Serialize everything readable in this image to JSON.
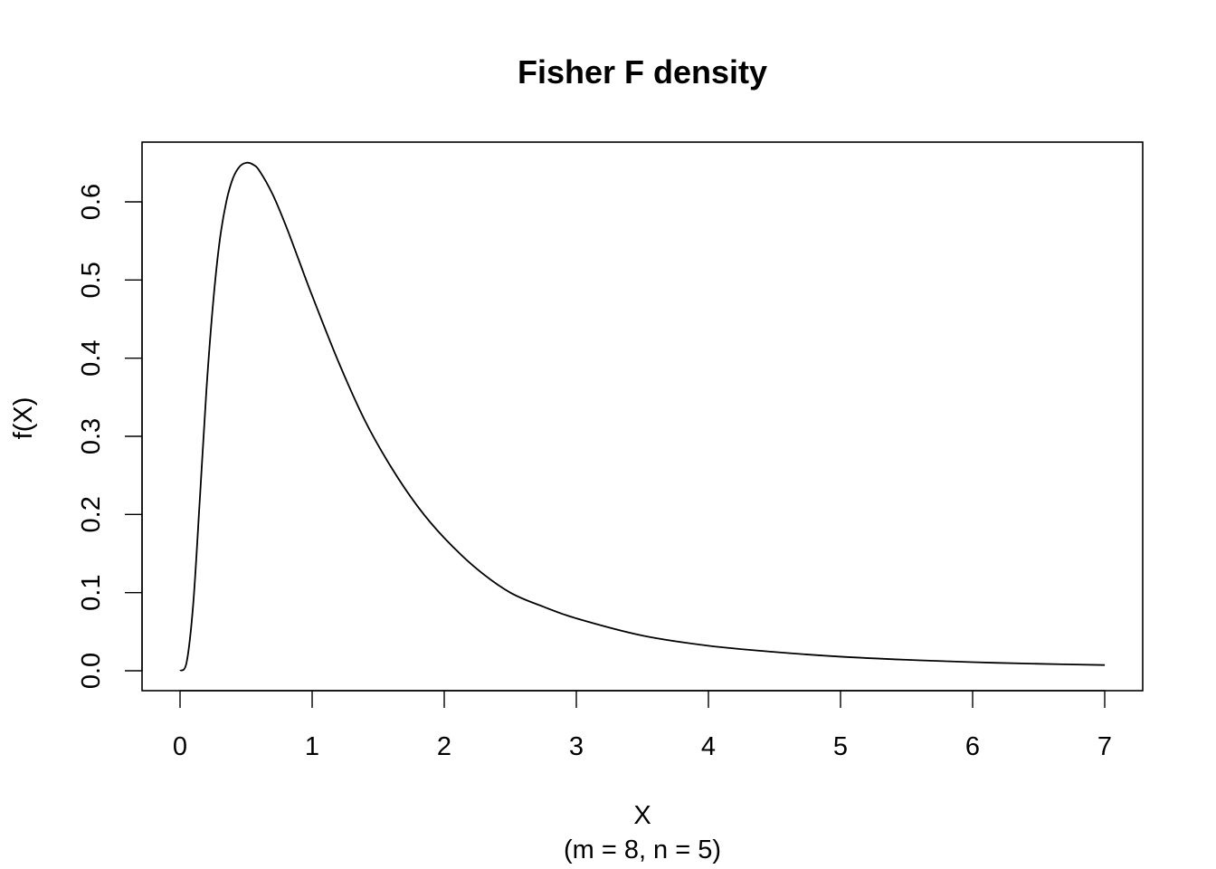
{
  "chart_data": {
    "type": "line",
    "title": "Fisher F density",
    "xlabel": "X",
    "subtitle": "(m = 8, n = 5)",
    "ylabel": "f(X)",
    "xlim": [
      0,
      7
    ],
    "ylim": [
      0,
      0.65
    ],
    "grid": false,
    "x_ticks": [
      0,
      1,
      2,
      3,
      4,
      5,
      6,
      7
    ],
    "x_tick_labels": [
      "0",
      "1",
      "2",
      "3",
      "4",
      "5",
      "6",
      "7"
    ],
    "y_ticks": [
      0.0,
      0.1,
      0.2,
      0.3,
      0.4,
      0.5,
      0.6
    ],
    "y_tick_labels": [
      "0.0",
      "0.1",
      "0.2",
      "0.3",
      "0.4",
      "0.5",
      "0.6"
    ],
    "series": [
      {
        "x": [
          0,
          0.05,
          0.1,
          0.15,
          0.2,
          0.25,
          0.3,
          0.35,
          0.4,
          0.45,
          0.5,
          0.55,
          0.6,
          0.7,
          0.8,
          0.9,
          1.0,
          1.2,
          1.4,
          1.6,
          1.8,
          2.0,
          2.25,
          2.5,
          2.75,
          3.0,
          3.5,
          4.0,
          4.5,
          5.0,
          5.5,
          6.0,
          6.5,
          7.0
        ],
        "values": [
          0,
          0.011,
          0.086,
          0.22,
          0.36,
          0.47,
          0.55,
          0.6,
          0.63,
          0.645,
          0.65,
          0.648,
          0.64,
          0.61,
          0.57,
          0.525,
          0.48,
          0.395,
          0.32,
          0.26,
          0.21,
          0.17,
          0.13,
          0.1,
          0.082,
          0.067,
          0.045,
          0.032,
          0.024,
          0.018,
          0.014,
          0.011,
          0.0089,
          0.0073
        ]
      }
    ]
  }
}
